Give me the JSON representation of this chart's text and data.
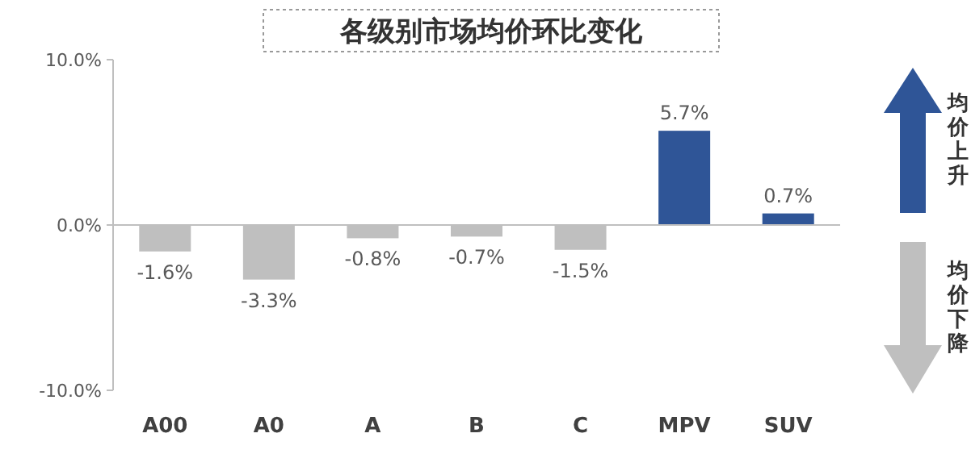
{
  "chart_data": {
    "type": "bar",
    "title": "各级别市场均价环比变化",
    "categories": [
      "A00",
      "A0",
      "A",
      "B",
      "C",
      "MPV",
      "SUV"
    ],
    "values": [
      -1.6,
      -3.3,
      -0.8,
      -0.7,
      -1.5,
      5.7,
      0.7
    ],
    "colors": [
      "#bfbfbf",
      "#bfbfbf",
      "#bfbfbf",
      "#bfbfbf",
      "#bfbfbf",
      "#2f5597",
      "#2f5597"
    ],
    "value_labels": [
      "-1.6%",
      "-3.3%",
      "-0.8%",
      "-0.7%",
      "-1.5%",
      "5.7%",
      "0.7%"
    ],
    "ylim": [
      -10,
      10
    ],
    "yticks": [
      {
        "value": -10,
        "label": "-10.0%"
      },
      {
        "value": 0,
        "label": "0.0%"
      },
      {
        "value": 10,
        "label": "10.0%"
      }
    ],
    "annotations": [
      "均价上升",
      "均价下降"
    ]
  }
}
